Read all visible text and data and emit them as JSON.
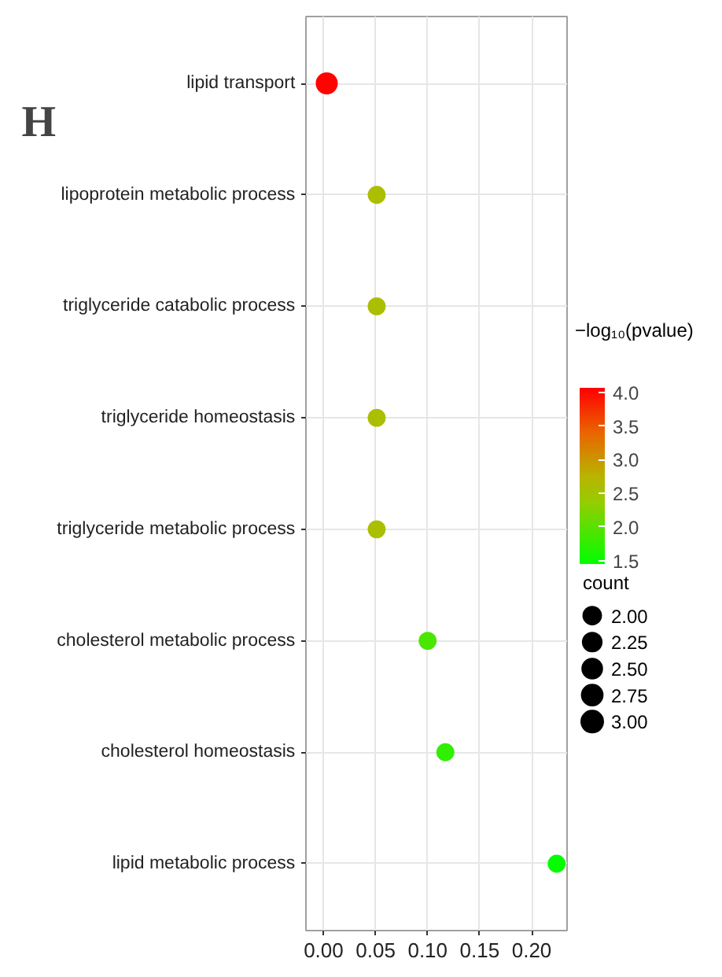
{
  "chart_data": {
    "type": "bubble",
    "categories": [
      "lipid transport",
      "lipoprotein metabolic process",
      "triglyceride catabolic process",
      "triglyceride homeostasis",
      "triglyceride metabolic process",
      "cholesterol metabolic process",
      "cholesterol homeostasis",
      "lipid metabolic process"
    ],
    "values": [
      0.003,
      0.051,
      0.051,
      0.051,
      0.051,
      0.1,
      0.117,
      0.224
    ],
    "sizes": [
      3,
      2,
      2,
      2,
      2,
      2,
      2,
      2
    ],
    "cvalues": [
      4.05,
      2.6,
      2.6,
      2.6,
      2.6,
      1.9,
      1.75,
      1.5
    ],
    "orientation": "horizontal",
    "xlim": [
      -0.017,
      0.234
    ],
    "xticks": [
      {
        "value": 0,
        "label": "0.00"
      },
      {
        "value": 0.05,
        "label": "0.05"
      },
      {
        "value": 0.1,
        "label": "0.10"
      },
      {
        "value": 0.15,
        "label": "0.15"
      },
      {
        "value": 0.2,
        "label": "0.20"
      }
    ],
    "clabel": "−log₁₀(pvalue)",
    "clim": [
      1.45,
      4.07
    ],
    "cticks": [
      {
        "value": 1.5,
        "label": "1.5"
      },
      {
        "value": 2,
        "label": "2.0"
      },
      {
        "value": 2.5,
        "label": "2.5"
      },
      {
        "value": 3,
        "label": "3.0"
      },
      {
        "value": 3.5,
        "label": "3.5"
      },
      {
        "value": 4,
        "label": "4.0"
      }
    ],
    "legend_title": "count",
    "size_legend": [
      {
        "value": 2,
        "label": "2.00"
      },
      {
        "value": 2.25,
        "label": "2.25"
      },
      {
        "value": 2.5,
        "label": "2.50"
      },
      {
        "value": 2.75,
        "label": "2.75"
      },
      {
        "value": 3,
        "label": "3.00"
      }
    ],
    "grid": true,
    "annotations": [
      "H"
    ]
  }
}
